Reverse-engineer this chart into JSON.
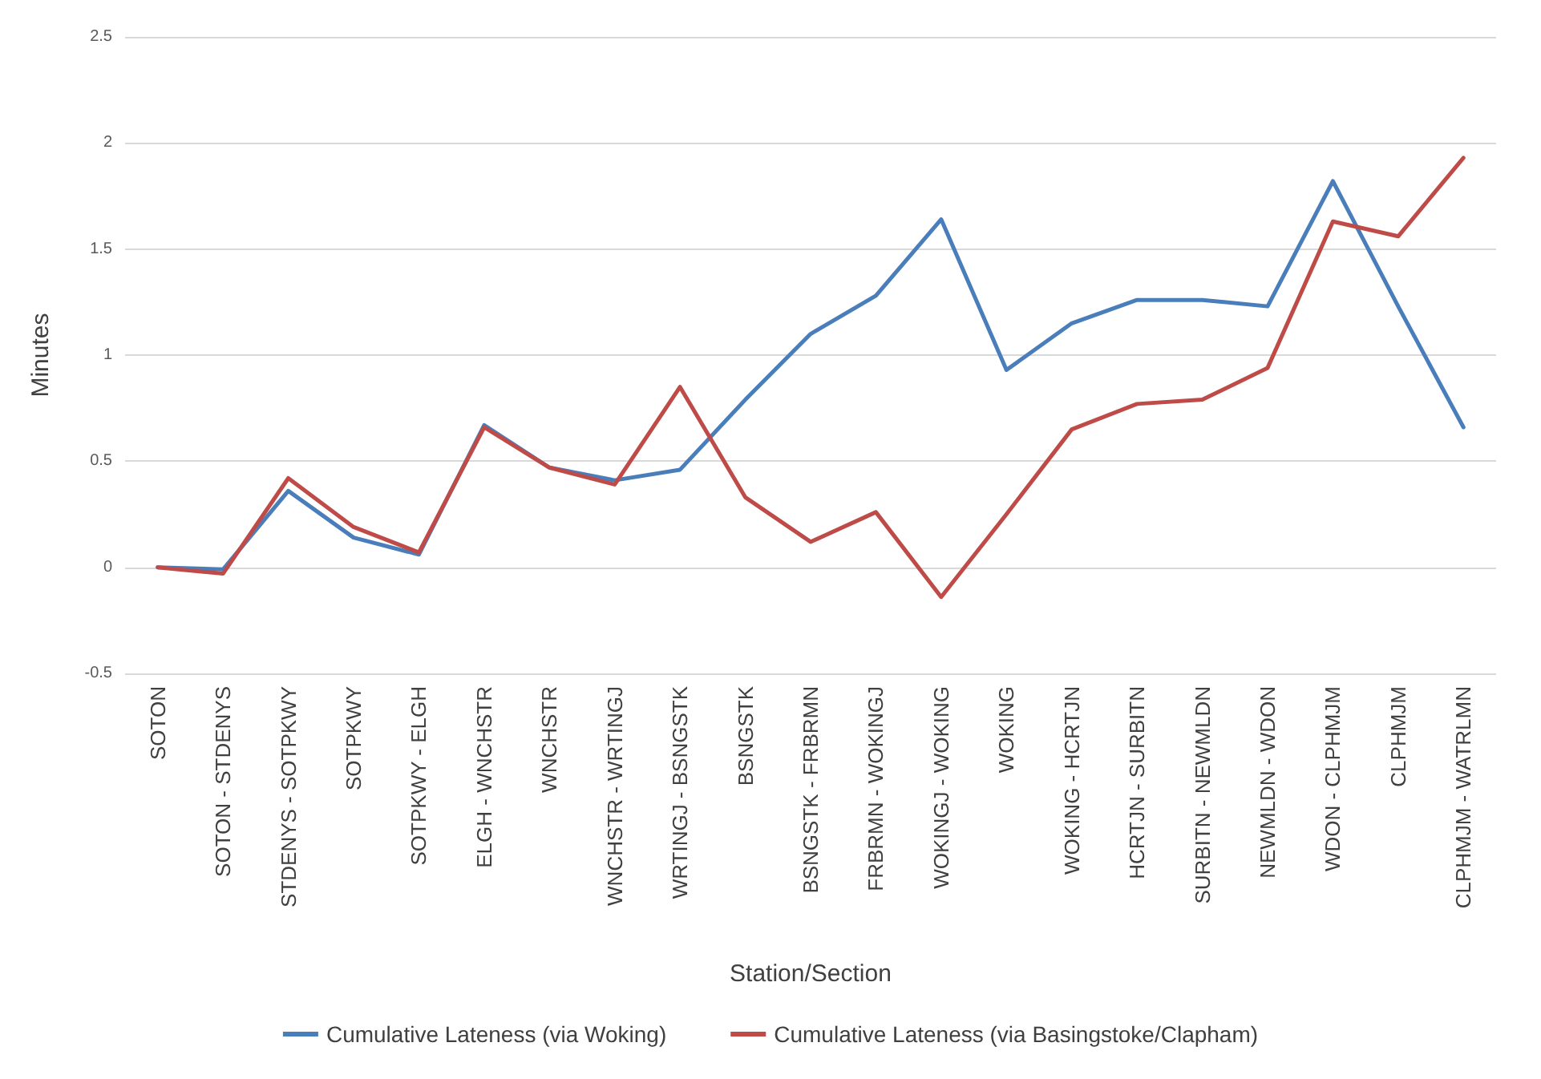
{
  "chart_data": {
    "type": "line",
    "xlabel": "Station/Section",
    "ylabel": "Minutes",
    "categories": [
      "SOTON",
      "SOTON - STDENYS",
      "STDENYS - SOTPKWY",
      "SOTPKWY",
      "SOTPKWY - ELGH",
      "ELGH - WNCHSTR",
      "WNCHSTR",
      "WNCHSTR - WRTINGJ",
      "WRTINGJ - BSNGSTK",
      "BSNGSTK",
      "BSNGSTK - FRBRMN",
      "FRBRMN - WOKINGJ",
      "WOKINGJ - WOKING",
      "WOKING",
      "WOKING - HCRTJN",
      "HCRTJN - SURBITN",
      "SURBITN - NEWMLDN",
      "NEWMLDN - WDON",
      "WDON - CLPHMJM",
      "CLPHMJM",
      "CLPHMJM - WATRLMN"
    ],
    "series": [
      {
        "name": "Cumulative Lateness (via Woking)",
        "color": "#4a7ebb",
        "values": [
          0,
          -0.01,
          0.36,
          0.14,
          0.06,
          0.67,
          0.47,
          0.41,
          0.46,
          0.79,
          1.1,
          1.28,
          1.64,
          0.93,
          1.15,
          1.26,
          1.26,
          1.23,
          1.82,
          1.23,
          0.66
        ]
      },
      {
        "name": "Cumulative Lateness (via Basingstoke/Clapham)",
        "color": "#be4b48",
        "values": [
          0,
          -0.03,
          0.42,
          0.19,
          0.07,
          0.66,
          0.47,
          0.39,
          0.85,
          0.33,
          0.12,
          0.26,
          -0.14,
          0.25,
          0.65,
          0.77,
          0.79,
          0.94,
          1.63,
          1.56,
          1.93
        ]
      }
    ],
    "ylim": [
      -0.5,
      2.5
    ],
    "yticks": [
      -0.5,
      0,
      0.5,
      1,
      1.5,
      2,
      2.5
    ],
    "grid": "y",
    "legend": "bottom",
    "marker": "none",
    "line_style": "solid"
  }
}
